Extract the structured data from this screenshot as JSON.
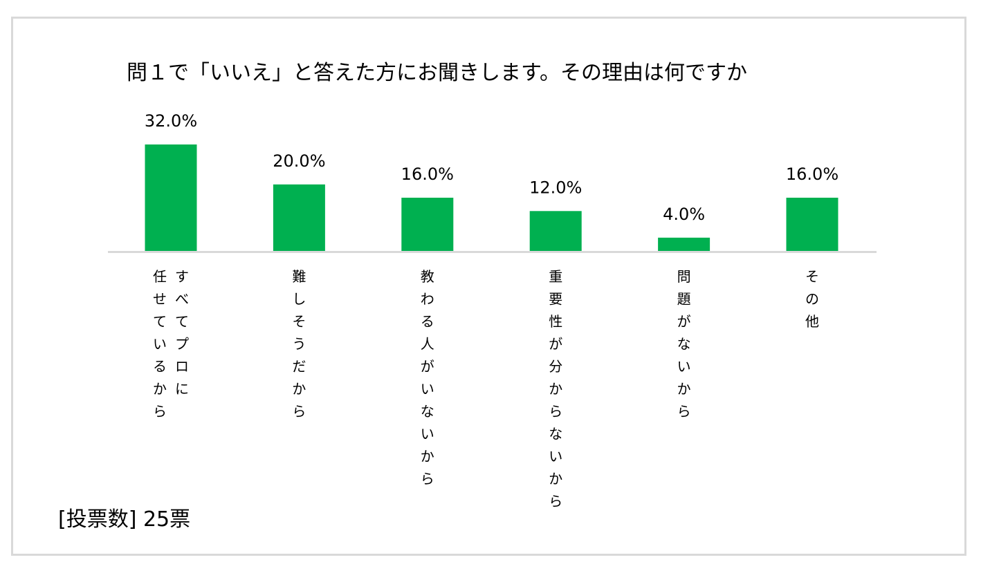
{
  "colors": {
    "bar": "#00b050",
    "axis": "#d9d9d9"
  },
  "footer": {
    "vote_count": "[投票数] 25票"
  },
  "chart_data": {
    "type": "bar",
    "title": "問１で「いいえ」と答えた方にお聞きします。その理由は何ですか",
    "categories": [
      [
        "すべてプロに",
        "任せているから"
      ],
      [
        "難しそうだから"
      ],
      [
        "教わる人がいないから"
      ],
      [
        "重要性が分からないから"
      ],
      [
        "問題がないから"
      ],
      [
        "その他"
      ]
    ],
    "values": [
      32.0,
      20.0,
      16.0,
      12.0,
      4.0,
      16.0
    ],
    "data_labels": [
      "32.0%",
      "20.0%",
      "16.0%",
      "12.0%",
      "4.0%",
      "16.0%"
    ],
    "xlabel": "",
    "ylabel": "",
    "ylim": [
      0,
      32
    ],
    "grid": false,
    "legend": "none"
  }
}
